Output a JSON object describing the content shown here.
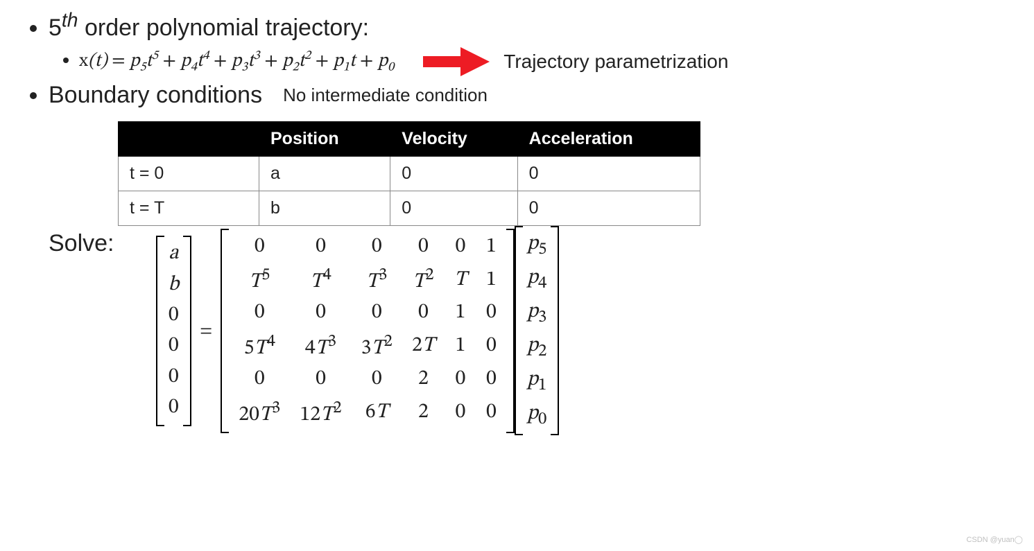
{
  "b1": {
    "title_prefix": "5",
    "title_sup": "th",
    "title_rest": " order polynomial trajectory:",
    "formula_html": "<span class='n'>x</span>(<span>t</span>) <span class='op'>=</span> p<sub>5</sub>t<sup>5</sup> <span class='op'>+</span> p<sub>4</sub>t<sup>4</sup> <span class='op'>+</span> p<sub>3</sub>t<sup>3</sup> <span class='op'>+</span> p<sub>2</sub>t<sup>2</sup> <span class='op'>+</span> p<sub>1</sub>t <span class='op'>+</span> p<sub>0</sub>",
    "arrow_color": "#ed1c24",
    "annotation": "Trajectory parametrization"
  },
  "b2": {
    "title": "Boundary conditions",
    "side_note": "No intermediate condition",
    "table": {
      "header_bg": "#000000",
      "header_fg": "#ffffff",
      "border_color": "#888888",
      "columns": [
        "",
        "Position",
        "Velocity",
        "Acceleration"
      ],
      "rows": [
        [
          "t = 0",
          "a",
          "0",
          "0"
        ],
        [
          "t = T",
          "b",
          "0",
          "0"
        ]
      ]
    }
  },
  "b3": {
    "title": "Solve:",
    "lhs_vec": [
      "a",
      "b",
      "0",
      "0",
      "0",
      "0"
    ],
    "matrix": [
      [
        "0",
        "0",
        "0",
        "0",
        "0",
        "1"
      ],
      [
        "T<sup>5</sup>",
        "T<sup>4</sup>",
        "T<sup>3</sup>",
        "T<sup>2</sup>",
        "T",
        "1"
      ],
      [
        "0",
        "0",
        "0",
        "0",
        "1",
        "0"
      ],
      [
        "5T<sup>4</sup>",
        "4T<sup>3</sup>",
        "3T<sup>2</sup>",
        "2T",
        "1",
        "0"
      ],
      [
        "0",
        "0",
        "0",
        "2",
        "0",
        "0"
      ],
      [
        "20T<sup>3</sup>",
        "12T<sup>2</sup>",
        "6T",
        "2",
        "0",
        "0"
      ]
    ],
    "rhs_vec": [
      "p<sub>5</sub>",
      "p<sub>4</sub>",
      "p<sub>3</sub>",
      "p<sub>2</sub>",
      "p<sub>1</sub>",
      "p<sub>0</sub>"
    ]
  },
  "watermark": "CSDN @yuan◯"
}
